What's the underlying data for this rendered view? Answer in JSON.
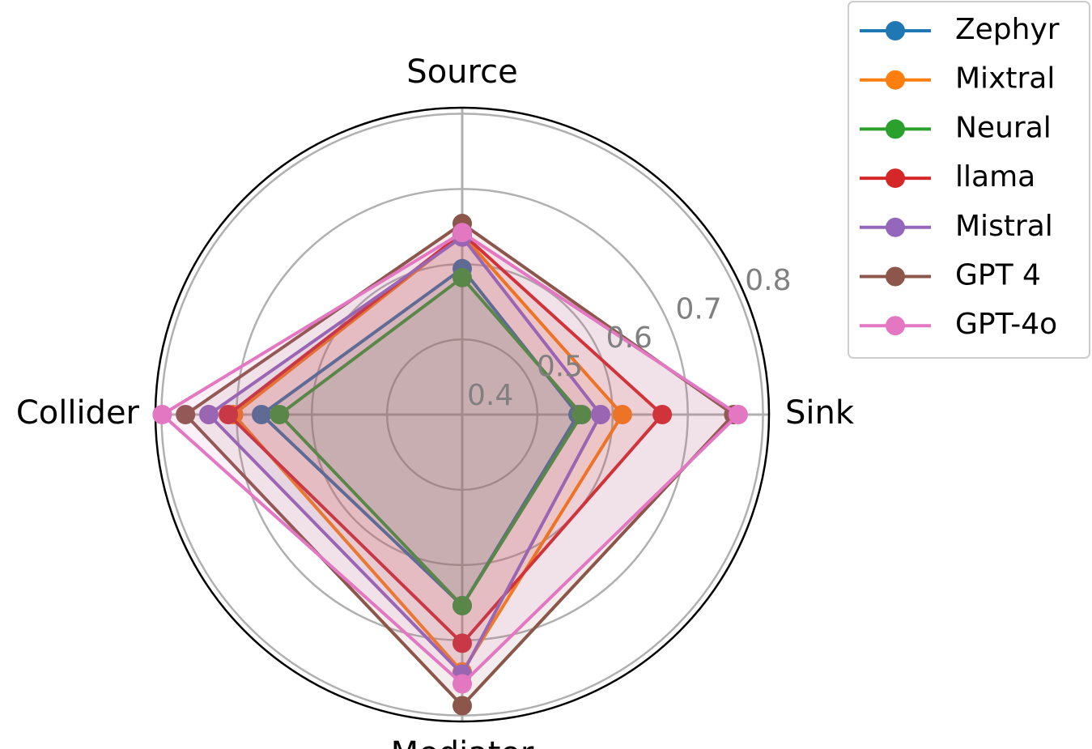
{
  "chart_data": {
    "type": "radar",
    "categories": [
      "Source",
      "Sink",
      "Mediator",
      "Collider"
    ],
    "series": [
      {
        "name": "Zephyr",
        "color": "#1f77b4",
        "values": [
          0.594,
          0.554,
          0.654,
          0.667
        ]
      },
      {
        "name": "Mixtral",
        "color": "#ff7f0e",
        "values": [
          0.639,
          0.613,
          0.742,
          0.704
        ]
      },
      {
        "name": "Neural",
        "color": "#2ca02c",
        "values": [
          0.582,
          0.559,
          0.654,
          0.643
        ]
      },
      {
        "name": "llama",
        "color": "#d62728",
        "values": [
          0.641,
          0.666,
          0.704,
          0.711
        ]
      },
      {
        "name": "Mistral",
        "color": "#9467bd",
        "values": [
          0.636,
          0.584,
          0.745,
          0.737
        ]
      },
      {
        "name": "GPT 4",
        "color": "#8c564b",
        "values": [
          0.654,
          0.761,
          0.787,
          0.768
        ]
      },
      {
        "name": "GPT-4o",
        "color": "#e377c2",
        "values": [
          0.642,
          0.767,
          0.758,
          0.799
        ]
      }
    ],
    "ylim": [
      0.4,
      0.808
    ],
    "yticks": [
      0.4,
      0.5,
      0.6,
      0.7,
      0.8
    ],
    "grid": true,
    "legend": "upper right"
  }
}
